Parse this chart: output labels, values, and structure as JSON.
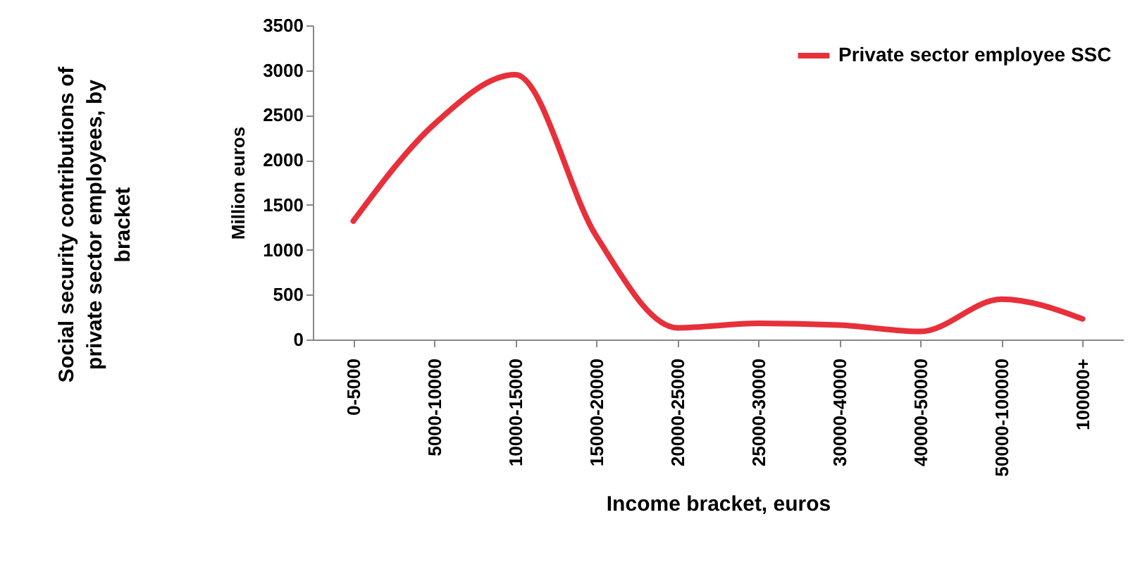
{
  "chart_data": {
    "type": "line",
    "xlabel": "Income bracket, euros",
    "ylabel": "Million euros",
    "annotations": [
      "Social security contributions of private sector employees, by bracket"
    ],
    "categories": [
      "0-5000",
      "5000-10000",
      "10000-15000",
      "15000-20000",
      "20000-25000",
      "25000-30000",
      "30000-40000",
      "40000-50000",
      "50000-100000",
      "100000+"
    ],
    "series": [
      {
        "name": "Private sector employee SSC",
        "color": "#e8303a",
        "values": [
          1320,
          2400,
          2950,
          1150,
          130,
          180,
          160,
          90,
          450,
          230
        ]
      }
    ],
    "ylim": [
      0,
      3500
    ],
    "yticks": [
      0,
      500,
      1000,
      1500,
      2000,
      2500,
      3000,
      3500
    ],
    "grid": false,
    "legend": "top right",
    "line_style": "solid",
    "marker": "none"
  }
}
